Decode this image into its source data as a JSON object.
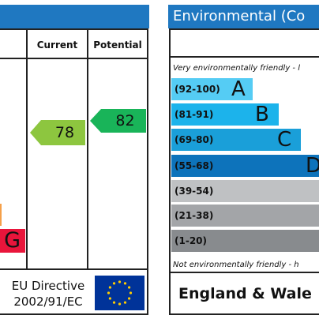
{
  "left_panel": {
    "columns": {
      "current": "Current",
      "potential": "Potential"
    },
    "current_rating": "78",
    "potential_rating": "82",
    "band_g_letter": "G",
    "footer": {
      "line1": "EU Directive",
      "line2": "2002/91/EC"
    },
    "colors": {
      "header": "#1f78c1",
      "current_arrow": "#8dc63f",
      "potential_arrow": "#19b459",
      "band_f": "#f5a04a",
      "band_g": "#e9153b"
    }
  },
  "right_panel": {
    "title": "Environmental (Co",
    "top_note": "Very environmentally friendly - l",
    "bottom_note": "Not environmentally friendly - h",
    "bands": [
      {
        "range": "(92-100)",
        "letter": "A",
        "color": "#55ccf4"
      },
      {
        "range": "(81-91)",
        "letter": "B",
        "color": "#1cb3eb"
      },
      {
        "range": "(69-80)",
        "letter": "C",
        "color": "#1a9fd9"
      },
      {
        "range": "(55-68)",
        "letter": "D",
        "color": "#0d73bb"
      },
      {
        "range": "(39-54)",
        "letter": "",
        "color": "#bfc1c3"
      },
      {
        "range": "(21-38)",
        "letter": "",
        "color": "#a3a5a8"
      },
      {
        "range": "(1-20)",
        "letter": "",
        "color": "#888b8e"
      }
    ],
    "footer": "England & Wale"
  }
}
